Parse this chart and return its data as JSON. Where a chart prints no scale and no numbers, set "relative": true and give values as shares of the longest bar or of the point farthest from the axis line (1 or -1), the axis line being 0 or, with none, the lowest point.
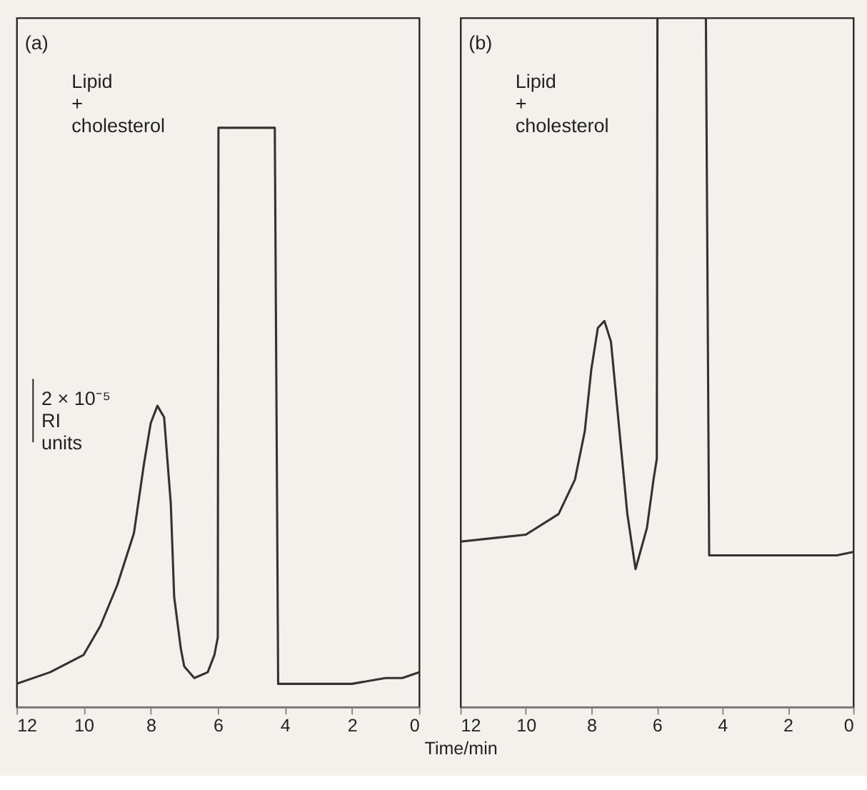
{
  "chart_data": [
    {
      "type": "line",
      "relative": true,
      "xlim": [
        12,
        0
      ],
      "xticks": [
        12,
        10,
        8,
        6,
        4,
        2,
        0
      ],
      "annotations": [
        "(a)",
        "Lipid\n+\ncholesterol",
        "2 × 10⁻⁵\nRI\nunits"
      ],
      "x": [
        12,
        11,
        10,
        9.5,
        9,
        8.5,
        8.2,
        8,
        7.8,
        7.6,
        7.4,
        7.3,
        7.1,
        7,
        6.7,
        6.3,
        6.1,
        6.0,
        5.98,
        4.3,
        4.2,
        3,
        2,
        1,
        0.5,
        0
      ],
      "series": [
        {
          "color": "#333333",
          "values": [
            0.04,
            0.06,
            0.09,
            0.14,
            0.21,
            0.3,
            0.42,
            0.49,
            0.52,
            0.5,
            0.35,
            0.19,
            0.1,
            0.07,
            0.05,
            0.06,
            0.09,
            0.12,
            1.0,
            1.0,
            0.04,
            0.04,
            0.04,
            0.05,
            0.05,
            0.06
          ]
        }
      ]
    },
    {
      "type": "line",
      "relative": true,
      "xlim": [
        12,
        0
      ],
      "xticks": [
        12,
        10,
        8,
        6,
        4,
        2,
        0
      ],
      "xlabel": "Time/min",
      "annotations": [
        "(b)",
        "Lipid\n+\ncholesterol"
      ],
      "x": [
        12,
        11,
        10,
        9,
        8.5,
        8.2,
        8,
        7.8,
        7.6,
        7.4,
        7.2,
        6.9,
        6.65,
        6.3,
        6.1,
        6.0,
        5.98,
        4.5,
        4.4,
        3,
        2,
        1,
        0.5,
        0
      ],
      "series": [
        {
          "color": "#333333",
          "values": [
            0.24,
            0.245,
            0.25,
            0.28,
            0.33,
            0.4,
            0.49,
            0.55,
            0.56,
            0.53,
            0.43,
            0.28,
            0.2,
            0.26,
            0.33,
            0.36,
            1.0,
            1.0,
            0.22,
            0.22,
            0.22,
            0.22,
            0.22,
            0.225
          ]
        }
      ]
    }
  ]
}
